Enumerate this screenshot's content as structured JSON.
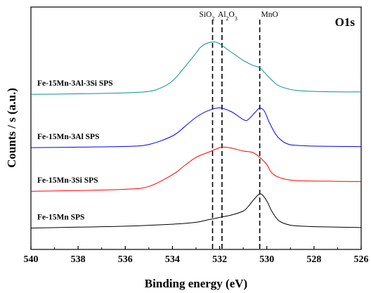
{
  "chart_data": {
    "type": "line",
    "panel_label": "O1s",
    "xlabel": "Binding energy (eV)",
    "ylabel": "Counts / s (a.u.)",
    "xlim": [
      540,
      526
    ],
    "x_reversed": true,
    "ylim": [
      0,
      1
    ],
    "y_ticks_labeled": false,
    "grid": false,
    "x_ticks": [
      "540",
      "538",
      "536",
      "534",
      "532",
      "530",
      "528",
      "526"
    ],
    "reference_lines": [
      {
        "x": 532.3,
        "label": "SiO",
        "sub": "2",
        "prefix": "",
        "mid": ""
      },
      {
        "x": 531.9,
        "label": "Al",
        "sub": "2",
        "prefix": "",
        "mid": "O",
        "sub2": "3"
      },
      {
        "x": 530.3,
        "label": "MnO",
        "sub": "",
        "prefix": "",
        "mid": ""
      }
    ],
    "series": [
      {
        "name": "Fe-15Mn SPS",
        "color": "#000000",
        "x": [
          540,
          538,
          536,
          534,
          533,
          532.5,
          532,
          531.5,
          531,
          530.8,
          530.6,
          530.4,
          530.3,
          530.2,
          530,
          529.8,
          529.6,
          529.4,
          529,
          528.5,
          528,
          527,
          526
        ],
        "y": [
          0.088,
          0.092,
          0.096,
          0.104,
          0.112,
          0.122,
          0.132,
          0.142,
          0.158,
          0.176,
          0.2,
          0.222,
          0.229,
          0.226,
          0.2,
          0.16,
          0.13,
          0.113,
          0.1,
          0.096,
          0.094,
          0.092,
          0.09
        ]
      },
      {
        "name": "Fe-15Mn-3Si SPS",
        "color": "#ff0000",
        "x": [
          540,
          538,
          536,
          535,
          534,
          533.5,
          533,
          532.5,
          532,
          531.8,
          531.5,
          531,
          530.6,
          530.3,
          530,
          529.8,
          529.5,
          529,
          528.5,
          528,
          527,
          526
        ],
        "y": [
          0.24,
          0.243,
          0.248,
          0.26,
          0.308,
          0.345,
          0.38,
          0.4,
          0.42,
          0.422,
          0.418,
          0.406,
          0.4,
          0.38,
          0.35,
          0.317,
          0.298,
          0.286,
          0.283,
          0.282,
          0.281,
          0.28
        ]
      },
      {
        "name": "Fe-15Mn-3Al SPS",
        "color": "#0000ff",
        "x": [
          540,
          538,
          536,
          535,
          534,
          533.5,
          533,
          532.5,
          532,
          531.5,
          531,
          530.8,
          530.5,
          530.3,
          530.1,
          529.9,
          529.6,
          529.3,
          529,
          528.5,
          528,
          527,
          526
        ],
        "y": [
          0.42,
          0.422,
          0.425,
          0.433,
          0.468,
          0.505,
          0.545,
          0.572,
          0.584,
          0.568,
          0.536,
          0.535,
          0.565,
          0.583,
          0.57,
          0.525,
          0.472,
          0.444,
          0.432,
          0.428,
          0.426,
          0.425,
          0.424
        ]
      },
      {
        "name": "Fe-15Mn-3Al-3Si SPS",
        "color": "#0e8f8f",
        "x": [
          540,
          538,
          536,
          535,
          534.5,
          534,
          533.5,
          533,
          532.8,
          532.5,
          532.2,
          532,
          531.6,
          531.3,
          531,
          530.6,
          530.3,
          530.1,
          529.8,
          529.5,
          529,
          528.5,
          528,
          527,
          526
        ],
        "y": [
          0.64,
          0.642,
          0.646,
          0.652,
          0.666,
          0.695,
          0.75,
          0.81,
          0.835,
          0.852,
          0.856,
          0.848,
          0.82,
          0.8,
          0.78,
          0.76,
          0.75,
          0.73,
          0.7,
          0.676,
          0.66,
          0.654,
          0.652,
          0.65,
          0.65
        ]
      }
    ]
  }
}
